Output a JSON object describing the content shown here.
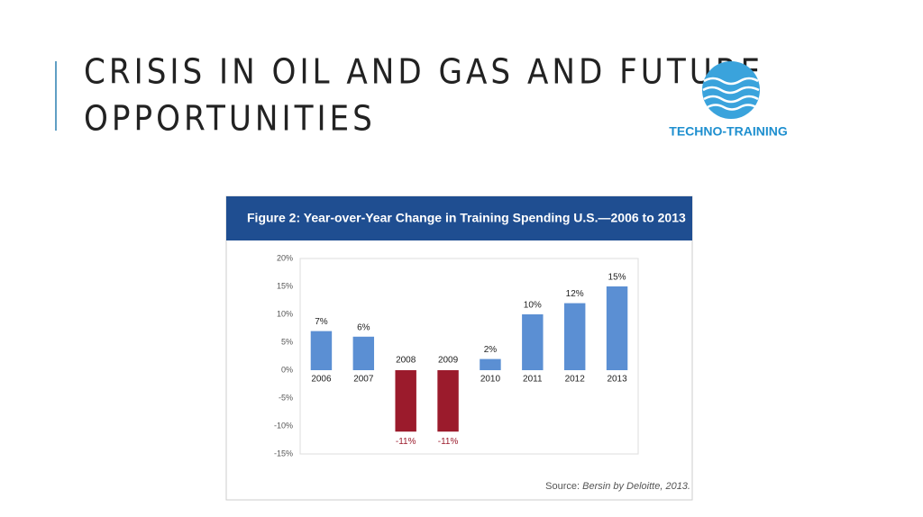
{
  "header": {
    "title_lines": [
      "CRISIS IN OIL AND GAS AND FUTURE",
      "OPPORTUNITIES"
    ],
    "logo_text": "TECHNO-TRAINING"
  },
  "chart_data": {
    "type": "bar",
    "title": "Figure 2: Year-over-Year Change in Training Spending U.S.—2006 to 2013",
    "categories": [
      "2006",
      "2007",
      "2008",
      "2009",
      "2010",
      "2011",
      "2012",
      "2013"
    ],
    "values": [
      7,
      6,
      -11,
      -11,
      2,
      10,
      12,
      15
    ],
    "value_labels": [
      "7%",
      "6%",
      "-11%",
      "-11%",
      "2%",
      "10%",
      "12%",
      "15%"
    ],
    "color": "#5b8fd3",
    "negative_color": "#9b1b2c",
    "ylim": [
      -15,
      20
    ],
    "yticks": [
      {
        "value": 20,
        "label": "20%"
      },
      {
        "value": 15,
        "label": "15%"
      },
      {
        "value": 10,
        "label": "10%"
      },
      {
        "value": 5,
        "label": "5%"
      },
      {
        "value": 0,
        "label": "0%"
      },
      {
        "value": -5,
        "label": "-5%"
      },
      {
        "value": -10,
        "label": "-10%"
      },
      {
        "value": -15,
        "label": "-15%"
      }
    ],
    "grid": false,
    "source_label": "Source:",
    "source_text": "Bersin by Deloitte, 2013."
  }
}
